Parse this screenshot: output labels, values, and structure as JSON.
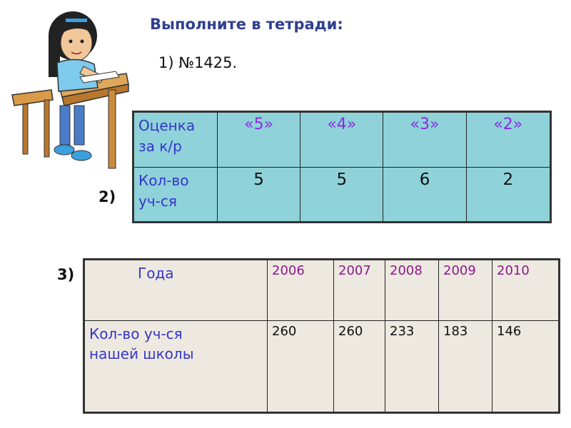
{
  "title": "Выполните в тетради:",
  "task1": "1) №1425.",
  "task2_label": "2)",
  "task3_label": "3)",
  "grades_table": {
    "header_label_line1": "Оценка",
    "header_label_line2": "за к/р",
    "grades": [
      "«5»",
      "«4»",
      "«3»",
      "«2»"
    ],
    "row_label_line1": "Кол-во",
    "row_label_line2": "уч-ся",
    "counts": [
      "5",
      "5",
      "6",
      "2"
    ],
    "background": "#8fd2da"
  },
  "school_table": {
    "header_label": "Года",
    "years": [
      "2006",
      "2007",
      "2008",
      "2009",
      "2010"
    ],
    "row_label_line1": "Кол-во уч-ся",
    "row_label_line2": "нашей школы",
    "counts": [
      "260",
      "260",
      "233",
      "183",
      "146"
    ],
    "background": "#ede9e0"
  },
  "illustration": "girl-writing-at-desk"
}
